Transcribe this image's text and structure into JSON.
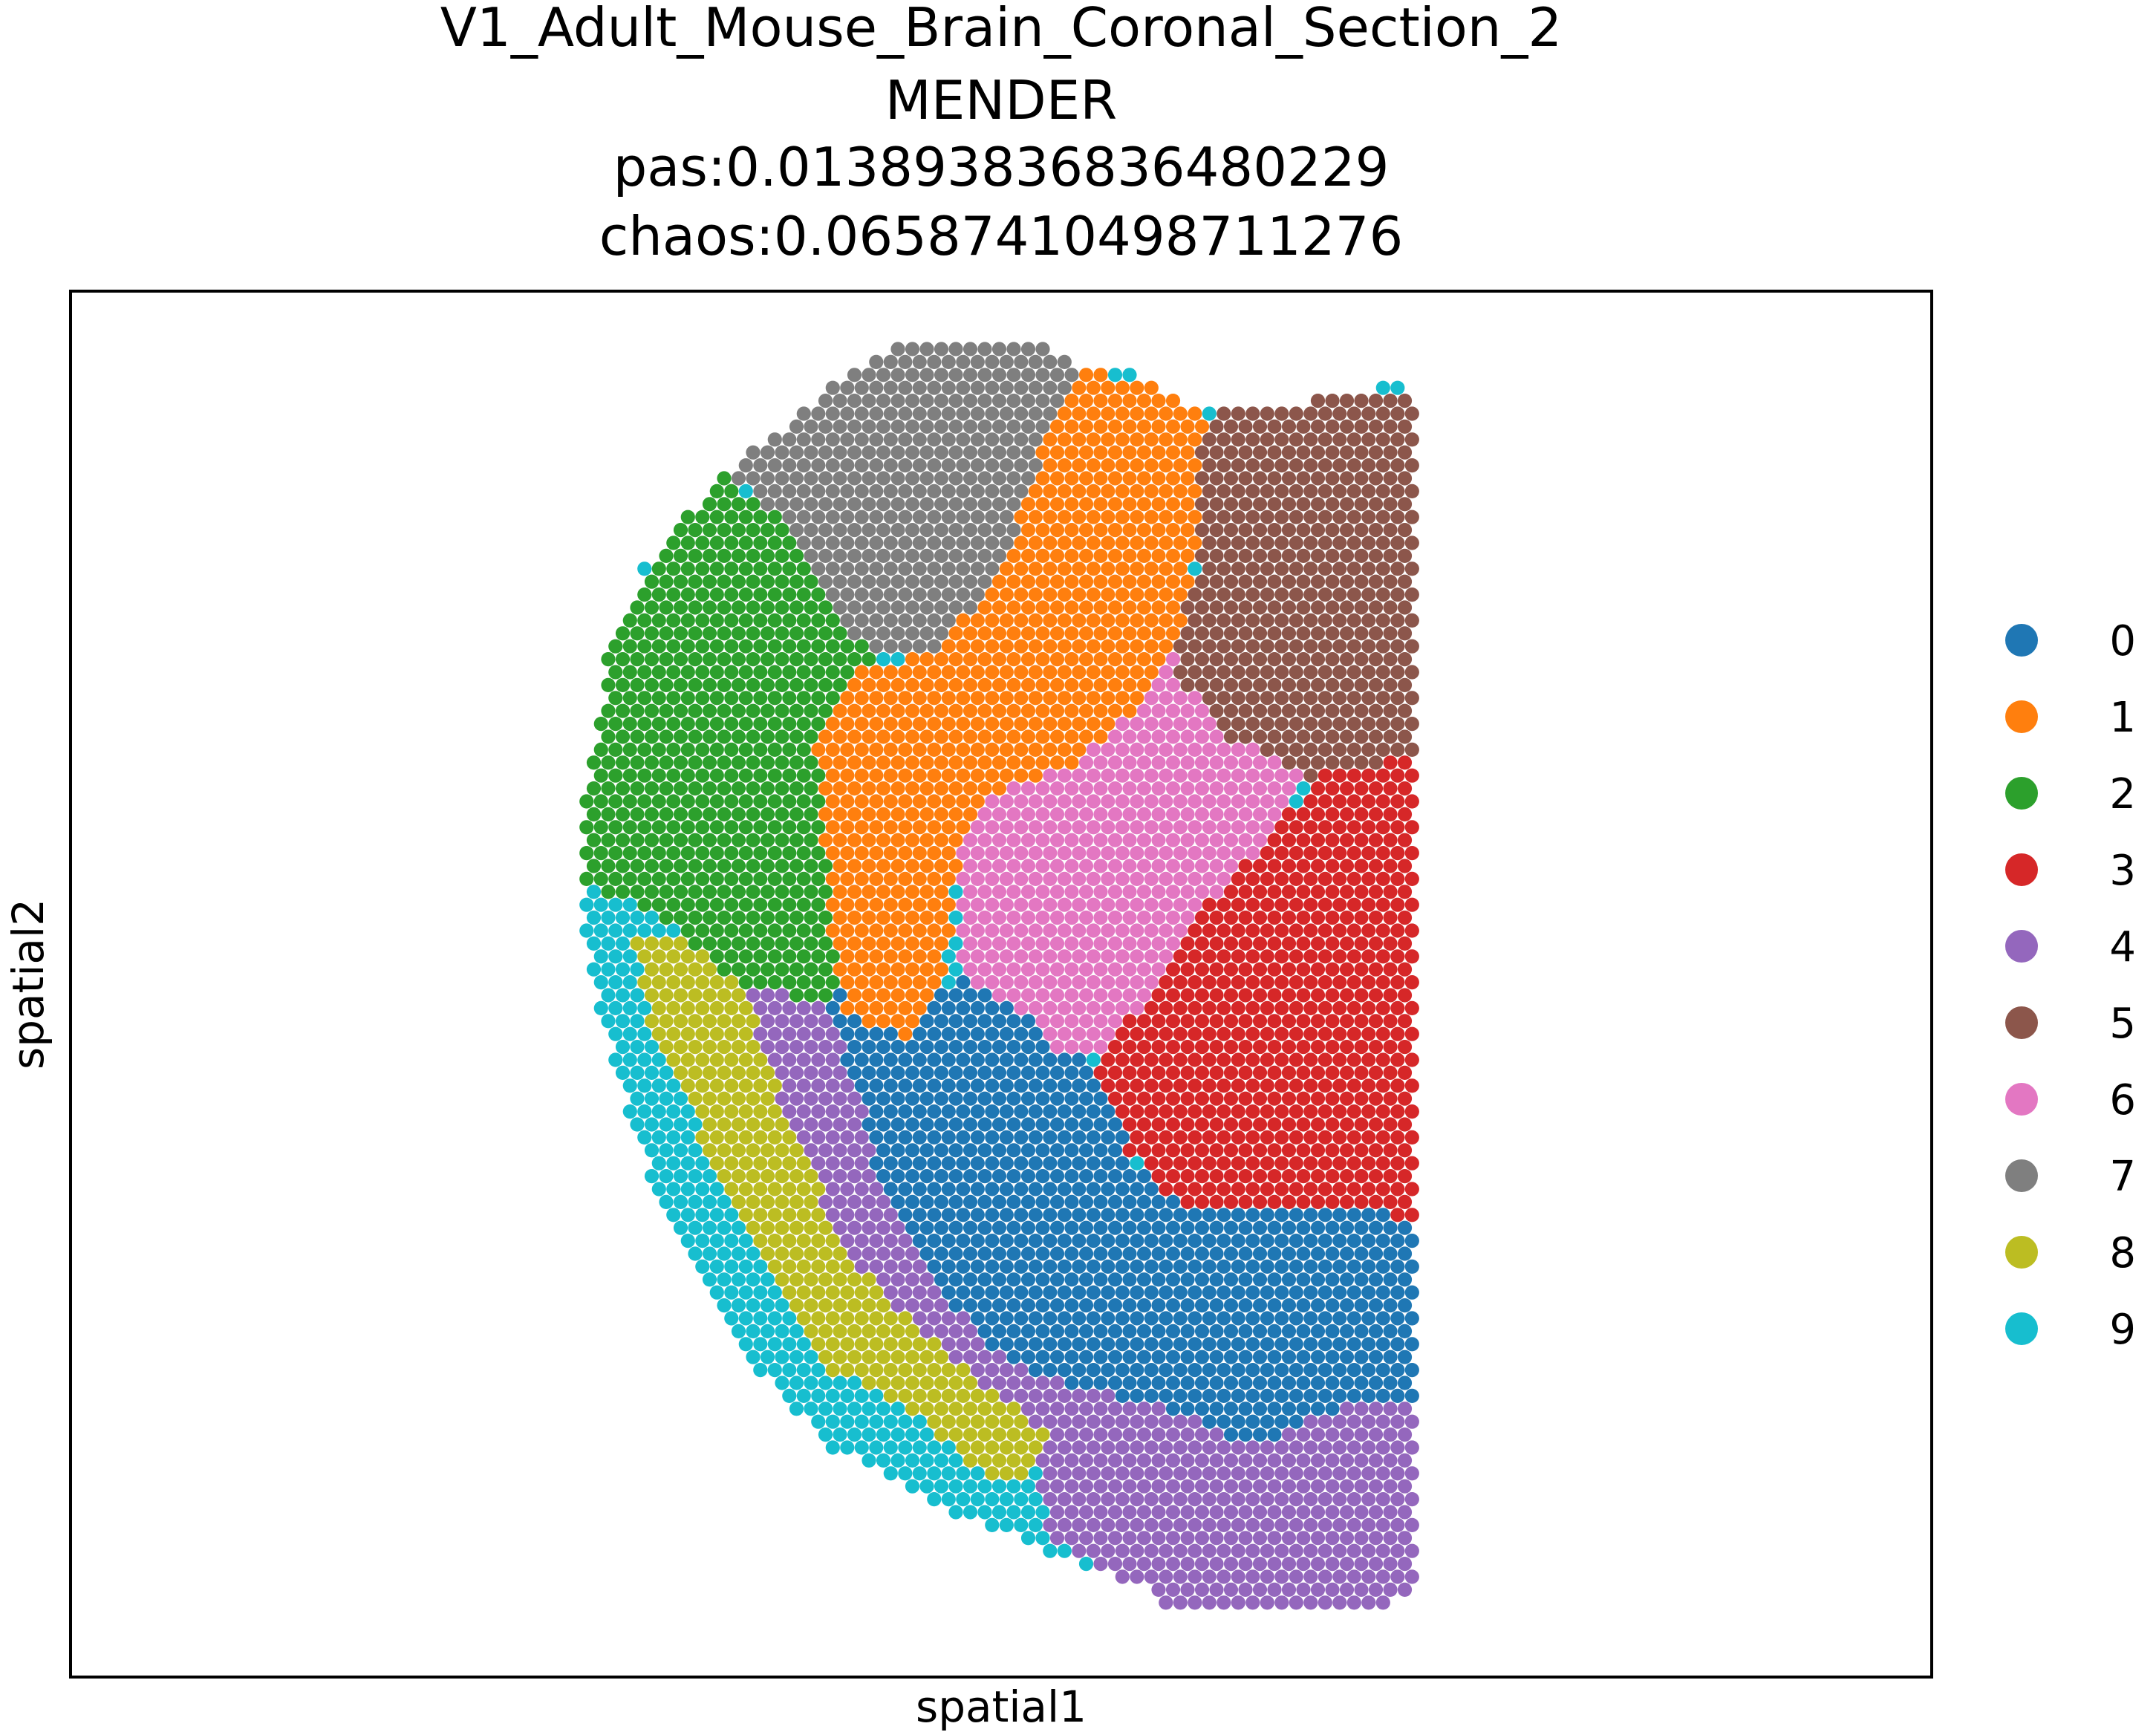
{
  "chart_data": {
    "type": "scatter",
    "title_lines": [
      "V1_Adult_Mouse_Brain_Coronal_Section_2",
      "MENDER",
      "pas:0.013893836836480229",
      "chaos:0.06587410498711276"
    ],
    "xlabel": "spatial1",
    "ylabel": "spatial2",
    "xticks": [],
    "yticks": [],
    "grid": false,
    "legend_placement": "right",
    "legend": [
      {
        "label": "0",
        "color": "#1f77b4"
      },
      {
        "label": "1",
        "color": "#ff7f0e"
      },
      {
        "label": "2",
        "color": "#2ca02c"
      },
      {
        "label": "3",
        "color": "#d62728"
      },
      {
        "label": "4",
        "color": "#9467bd"
      },
      {
        "label": "5",
        "color": "#8c564b"
      },
      {
        "label": "6",
        "color": "#e377c2"
      },
      {
        "label": "7",
        "color": "#7f7f7f"
      },
      {
        "label": "8",
        "color": "#bcbd22"
      },
      {
        "label": "9",
        "color": "#17becf"
      }
    ]
  }
}
